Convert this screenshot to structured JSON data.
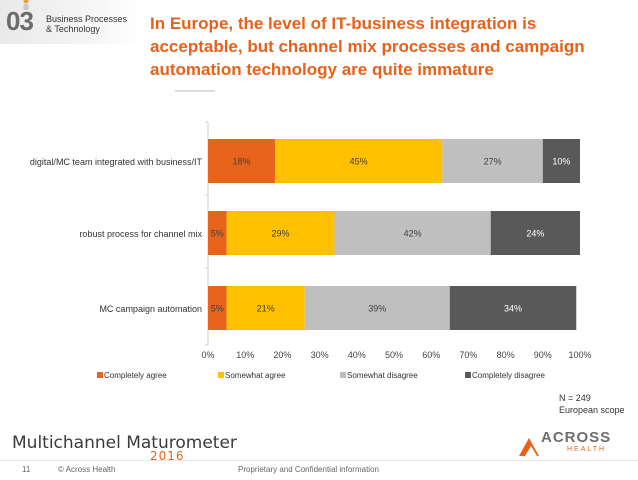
{
  "header": {
    "section_number": "03",
    "section_label_line1": "Business Processes",
    "section_label_line2": "& Technology",
    "title_line1": "In Europe, the level of IT-business integration is",
    "title_line2": "acceptable, but channel mix processes and campaign",
    "title_line3": "automation technology are quite immature"
  },
  "chart_data": {
    "type": "bar",
    "orientation": "horizontal",
    "stacked": "percent",
    "categories": [
      "digital/MC team integrated with business/IT",
      "robust process for channel mix",
      "MC campaign automation"
    ],
    "series": [
      {
        "name": "Completely agree",
        "color": "#e8631c",
        "values": [
          18,
          5,
          5
        ]
      },
      {
        "name": "Somewhat agree",
        "color": "#ffc000",
        "values": [
          45,
          29,
          21
        ]
      },
      {
        "name": "Somewhat disagree",
        "color": "#bfbfbf",
        "values": [
          27,
          42,
          39
        ]
      },
      {
        "name": "Completely disagree",
        "color": "#595959",
        "values": [
          10,
          24,
          34
        ]
      }
    ],
    "value_labels": [
      [
        "18%",
        "45%",
        "27%",
        "10%"
      ],
      [
        "5%",
        "29%",
        "42%",
        "24%"
      ],
      [
        "5%",
        "21%",
        "39%",
        "34%"
      ]
    ],
    "xlim": [
      0,
      100
    ],
    "x_ticks": [
      "0%",
      "10%",
      "20%",
      "30%",
      "40%",
      "50%",
      "60%",
      "70%",
      "80%",
      "90%",
      "100%"
    ],
    "legend_position": "bottom"
  },
  "note": {
    "sample": "N = 249",
    "scope": "European scope"
  },
  "footer": {
    "brand": "Multichannel Maturometer",
    "year": "2016",
    "page": "11",
    "copyright": "© Across Health",
    "confidential": "Proprietary and Confidential information",
    "logo_main": "ACROSS",
    "logo_sub": "HEALTH"
  },
  "colors": {
    "accent": "#e8611a"
  }
}
